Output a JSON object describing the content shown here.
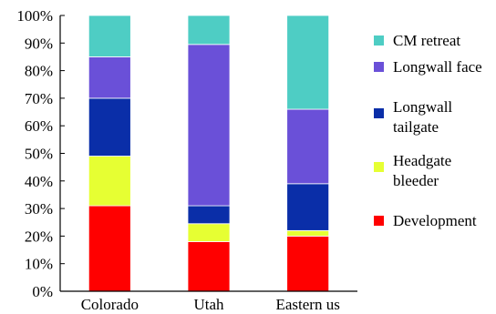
{
  "chart_data": {
    "type": "bar",
    "stacked": true,
    "categories": [
      "Colorado",
      "Utah",
      "Eastern us"
    ],
    "ylim": [
      0,
      100
    ],
    "yticks": [
      "0%",
      "10%",
      "20%",
      "30%",
      "40%",
      "50%",
      "60%",
      "70%",
      "80%",
      "90%",
      "100%"
    ],
    "legend_position": "right",
    "series": [
      {
        "name": "Development",
        "color": "#ff0000",
        "values": [
          31,
          18,
          20
        ]
      },
      {
        "name": "Headgate bleeder",
        "color": "#e6ff33",
        "values": [
          18,
          6.5,
          2
        ]
      },
      {
        "name": "Longwall tailgate",
        "color": "#0a2ea8",
        "values": [
          21,
          6.5,
          17
        ]
      },
      {
        "name": "Longwall face",
        "color": "#6a50d8",
        "values": [
          15,
          58.5,
          27
        ]
      },
      {
        "name": "CM retreat",
        "color": "#4ecdc4",
        "values": [
          15,
          10.5,
          34
        ]
      }
    ],
    "legend": [
      {
        "lines": [
          "CM retreat"
        ],
        "color": "#4ecdc4"
      },
      {
        "lines": [
          "Longwall face"
        ],
        "color": "#6a50d8"
      },
      {
        "lines": [
          "Longwall",
          "tailgate"
        ],
        "color": "#0a2ea8"
      },
      {
        "lines": [
          "Headgate",
          "bleeder"
        ],
        "color": "#e6ff33"
      },
      {
        "lines": [
          "Development"
        ],
        "color": "#ff0000"
      }
    ]
  }
}
